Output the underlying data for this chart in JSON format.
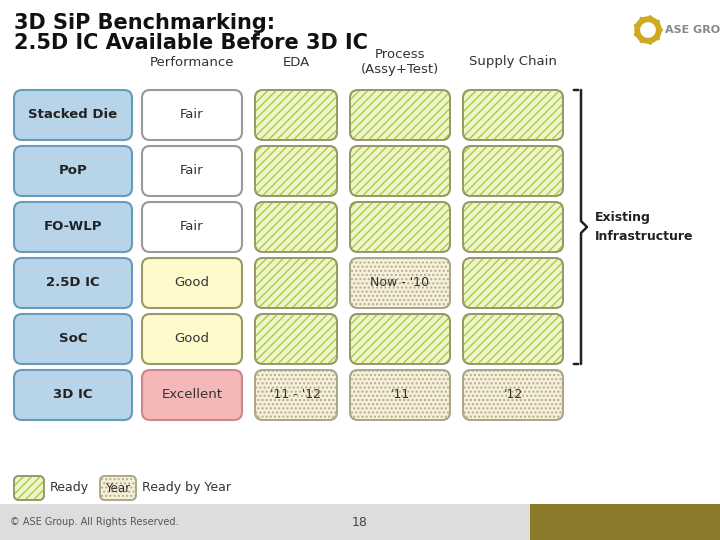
{
  "title_line1": "3D SiP Benchmarking:",
  "title_line2": "2.5D IC Available Before 3D IC",
  "background_color": "#ffffff",
  "col_headers": [
    "Performance",
    "EDA",
    "Process\n(Assy+Test)",
    "Supply Chain"
  ],
  "row_labels": [
    "Stacked Die",
    "PoP",
    "FO-WLP",
    "2.5D IC",
    "SoC",
    "3D IC"
  ],
  "performance_labels": [
    "Fair",
    "Fair",
    "Fair",
    "Good",
    "Good",
    "Excellent"
  ],
  "eda_labels": [
    "",
    "",
    "",
    "",
    "",
    "'11 - '12"
  ],
  "process_labels": [
    "",
    "",
    "",
    "Now - '10",
    "",
    "'11"
  ],
  "supply_labels": [
    "",
    "",
    "",
    "",
    "",
    "'12"
  ],
  "row_label_fc": "#b8d4e8",
  "row_label_ec": "#6699bb",
  "perf_fair_fc": "#ffffff",
  "perf_fair_ec": "#999999",
  "perf_good_fc": "#fffacc",
  "perf_good_ec": "#999966",
  "perf_excellent_fc": "#f4b8b8",
  "perf_excellent_ec": "#cc8888",
  "striped_bg": "#eef5cc",
  "striped_hatch_color": "#aacc44",
  "striped_ec": "#999966",
  "dotted_bg": "#f5f0dc",
  "dotted_ec": "#aaa888",
  "legend_ready_label": "Ready",
  "legend_year_label": "Ready by Year",
  "existing_infra_label": "Existing\nInfrastructure",
  "footer_text": "© ASE Group. All Rights Reserved.",
  "footer_bg": "#dddddd",
  "page_number": "18",
  "logo_text": "ASE GROUP"
}
